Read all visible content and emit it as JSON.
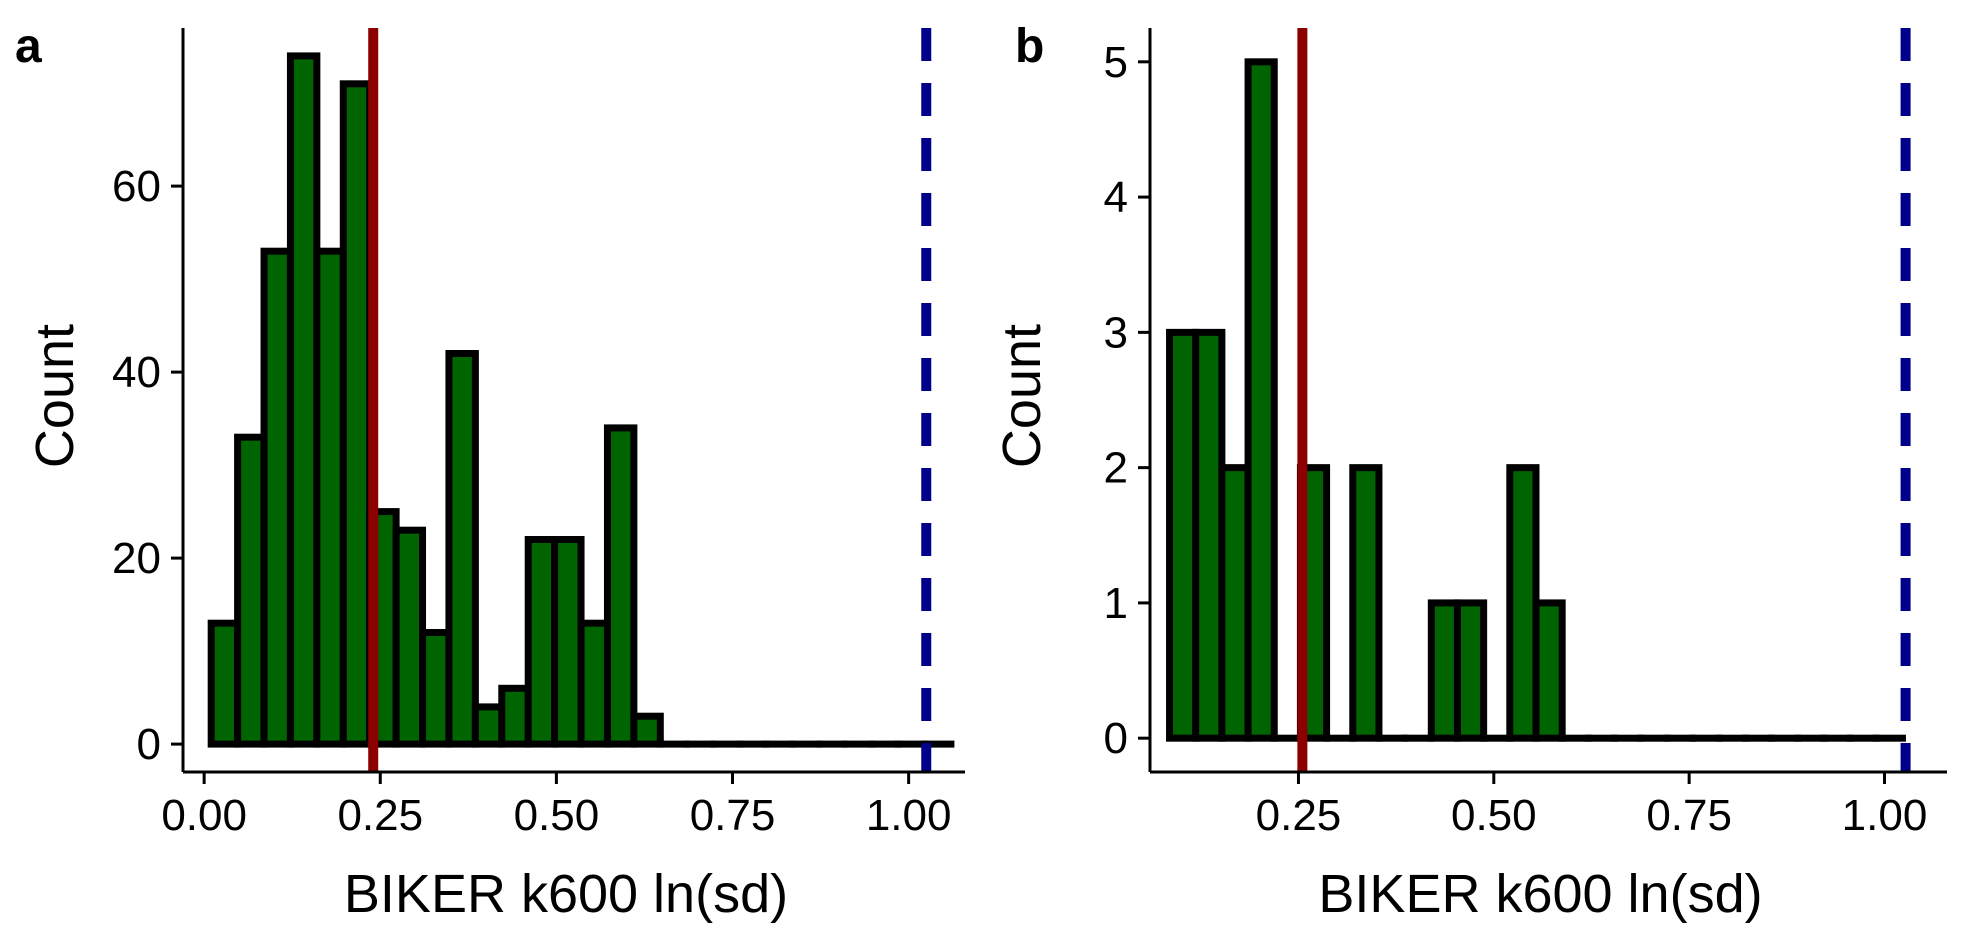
{
  "colors": {
    "bar_fill": "#006400",
    "bar_stroke": "#000000",
    "red_line": "#8B0000",
    "blue_line": "#00008B"
  },
  "chart_data": [
    {
      "type": "bar",
      "panel": "a",
      "xlabel": "BIKER k600 ln(sd)",
      "ylabel": "Count",
      "xlim": [
        -0.03,
        1.08
      ],
      "ylim": [
        -3,
        77
      ],
      "xticks": [
        "0.00",
        "0.25",
        "0.50",
        "0.75",
        "1.00"
      ],
      "xtick_values": [
        0.0,
        0.25,
        0.5,
        0.75,
        1.0
      ],
      "yticks": [
        "0",
        "20",
        "40",
        "60"
      ],
      "ytick_values": [
        0,
        20,
        40,
        60
      ],
      "bin_width": 0.0375,
      "bins_start": 0.01,
      "counts": [
        13,
        33,
        53,
        74,
        53,
        71,
        25,
        23,
        12,
        42,
        4,
        6,
        22,
        22,
        13,
        34,
        3,
        0,
        0,
        0,
        0,
        0,
        0,
        0,
        0,
        0,
        0,
        0
      ],
      "red_line_x": 0.24,
      "blue_dashed_line_x": 1.025,
      "grid": false
    },
    {
      "type": "bar",
      "panel": "b",
      "xlabel": "BIKER k600 ln(sd)",
      "ylabel": "Count",
      "xlim": [
        0.06,
        1.08
      ],
      "ylim": [
        -0.25,
        5.25
      ],
      "xticks": [
        "0.25",
        "0.50",
        "0.75",
        "1.00"
      ],
      "xtick_values": [
        0.25,
        0.5,
        0.75,
        1.0
      ],
      "yticks": [
        "0",
        "1",
        "2",
        "3",
        "4",
        "5"
      ],
      "ytick_values": [
        0,
        1,
        2,
        3,
        4,
        5
      ],
      "bin_width": 0.0335,
      "bins_start": 0.085,
      "counts": [
        3,
        3,
        2,
        5,
        0,
        2,
        0,
        2,
        0,
        0,
        1,
        1,
        0,
        2,
        1,
        0,
        0,
        0,
        0,
        0,
        0,
        0,
        0,
        0,
        0,
        0,
        0,
        0
      ],
      "red_line_x": 0.255,
      "blue_dashed_line_x": 1.027,
      "grid": false
    }
  ]
}
